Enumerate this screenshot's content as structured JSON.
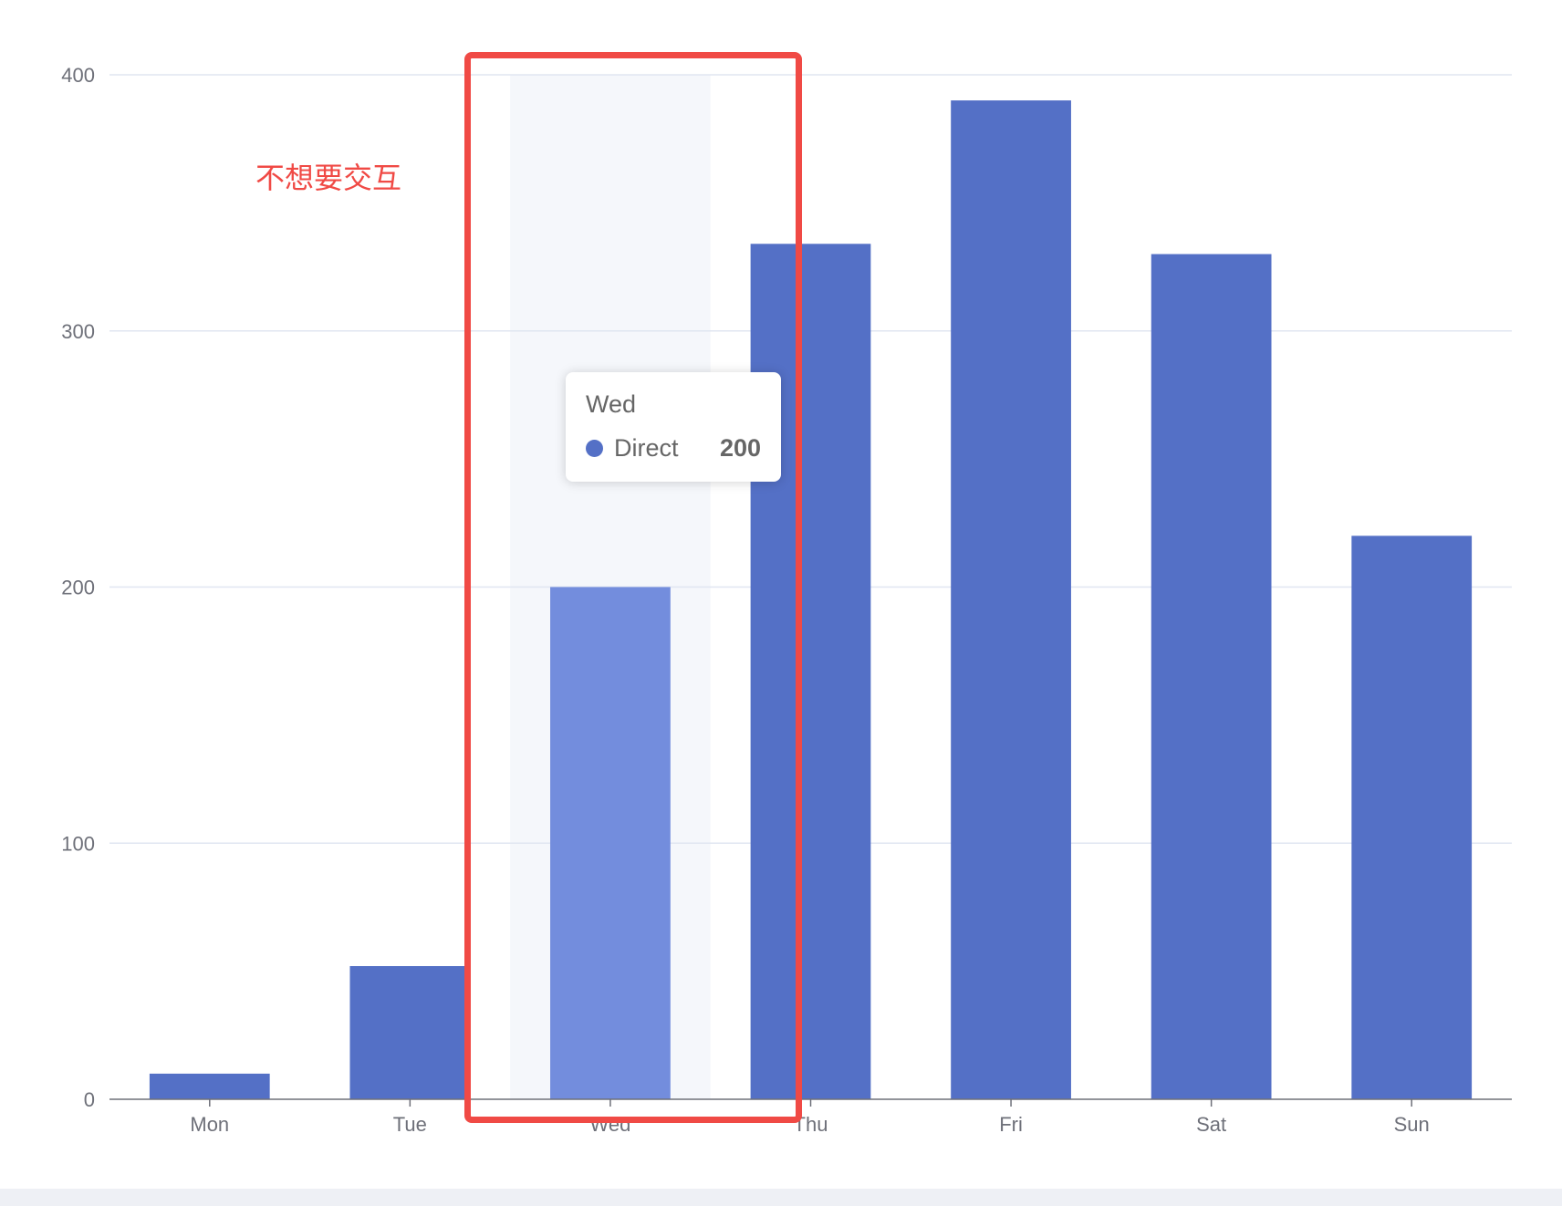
{
  "chart_data": {
    "type": "bar",
    "categories": [
      "Mon",
      "Tue",
      "Wed",
      "Thu",
      "Fri",
      "Sat",
      "Sun"
    ],
    "series": [
      {
        "name": "Direct",
        "values": [
          10,
          52,
          200,
          334,
          390,
          330,
          220
        ]
      }
    ],
    "yticks": [
      "0",
      "100",
      "200",
      "300",
      "400"
    ],
    "ylim": [
      0,
      400
    ],
    "highlighted_index": 2,
    "title": "",
    "xlabel": "",
    "ylabel": ""
  },
  "tooltip": {
    "title": "Wed",
    "series_name": "Direct",
    "value": "200"
  },
  "annotation": {
    "text": "不想要交互"
  },
  "colors": {
    "bar": "#5470c6",
    "bar_highlight": "#738ddd",
    "axis_shadow": "#f5f7fb",
    "grid_line": "#e0e6f1",
    "axis_line": "#6e7079",
    "annotation": "#f04a45",
    "bottom_strip": "#eef0f5"
  }
}
